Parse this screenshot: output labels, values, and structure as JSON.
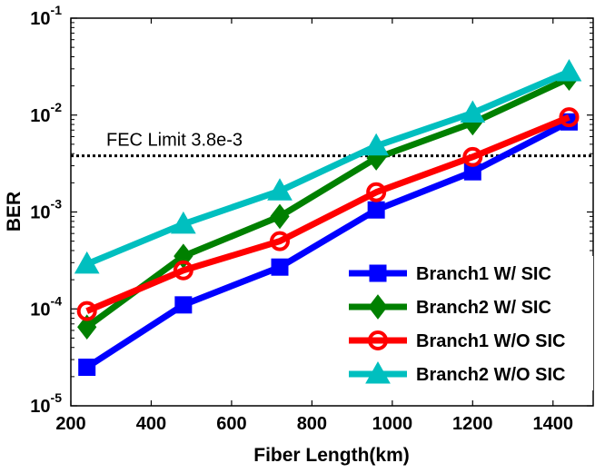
{
  "chart_data": {
    "type": "line",
    "title": "",
    "xlabel": "Fiber Length(km)",
    "ylabel": "BER",
    "x_scale": "linear",
    "y_scale": "log",
    "xlim": [
      200,
      1500
    ],
    "ylim": [
      1e-05,
      0.1
    ],
    "x": [
      240,
      480,
      720,
      960,
      1200,
      1440
    ],
    "x_ticks": [
      200,
      400,
      600,
      800,
      1000,
      1200,
      1400
    ],
    "x_tick_labels": [
      "200",
      "400",
      "600",
      "800",
      "1000",
      "1200",
      "1400"
    ],
    "y_ticks": [
      1e-05,
      0.0001,
      0.001,
      0.01,
      0.1
    ],
    "y_tick_labels": [
      {
        "base": "10",
        "exp": "-5"
      },
      {
        "base": "10",
        "exp": "-4"
      },
      {
        "base": "10",
        "exp": "-3"
      },
      {
        "base": "10",
        "exp": "-2"
      },
      {
        "base": "10",
        "exp": "-1"
      }
    ],
    "grid": false,
    "legend_position": "lower-right",
    "series": [
      {
        "name": "Branch1 W/ SIC",
        "color": "#0000ff",
        "marker": "square",
        "values": [
          2.5e-05,
          0.00011,
          0.00027,
          0.00105,
          0.0026,
          0.0085
        ]
      },
      {
        "name": "Branch2 W/ SIC",
        "color": "#008000",
        "marker": "diamond",
        "values": [
          6.5e-05,
          0.00035,
          0.0009,
          0.0036,
          0.0083,
          0.024
        ]
      },
      {
        "name": "Branch1 W/O SIC",
        "color": "#ff0000",
        "marker": "circle",
        "values": [
          9.5e-05,
          0.00025,
          0.0005,
          0.0016,
          0.0037,
          0.0095
        ]
      },
      {
        "name": "Branch2 W/O SIC",
        "color": "#00bfbf",
        "marker": "triangle",
        "values": [
          0.00029,
          0.00075,
          0.00165,
          0.0048,
          0.0105,
          0.028
        ]
      }
    ],
    "annotations": [
      {
        "type": "hline",
        "y": 0.0038,
        "style": "dotted",
        "color": "#000000",
        "label": "FEC Limit 3.8e-3"
      }
    ]
  }
}
